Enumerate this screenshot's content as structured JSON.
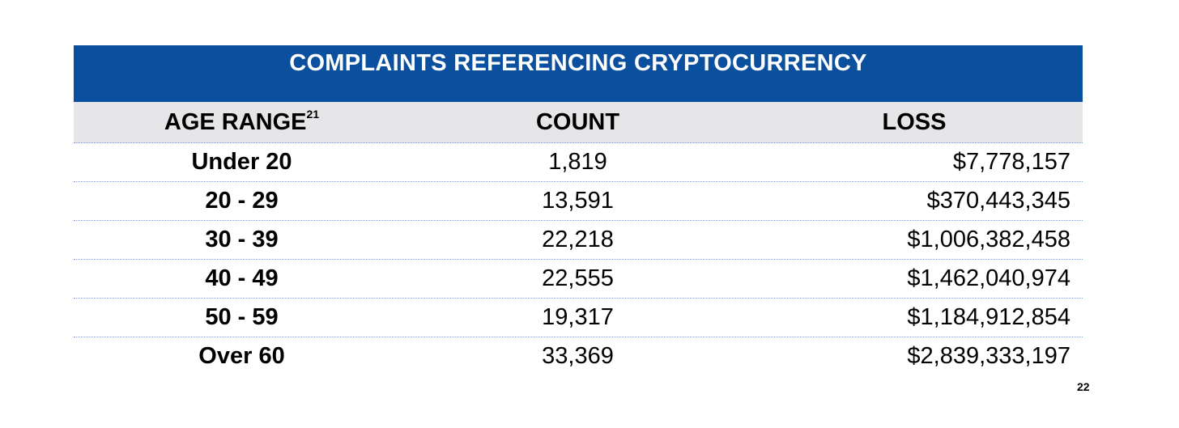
{
  "title": "COMPLAINTS REFERENCING CRYPTOCURRENCY",
  "headers": {
    "age_range": "AGE RANGE",
    "age_range_footnote": "21",
    "count": "COUNT",
    "loss": "LOSS"
  },
  "rows": [
    {
      "age": "Under 20",
      "count": "1,819",
      "loss": "$7,778,157"
    },
    {
      "age": "20 - 29",
      "count": "13,591",
      "loss": "$370,443,345"
    },
    {
      "age": "30 - 39",
      "count": "22,218",
      "loss": "$1,006,382,458"
    },
    {
      "age": "40 - 49",
      "count": "22,555",
      "loss": "$1,462,040,974"
    },
    {
      "age": "50 - 59",
      "count": "19,317",
      "loss": "$1,184,912,854"
    },
    {
      "age": "Over 60",
      "count": "33,369",
      "loss": "$2,839,333,197"
    }
  ],
  "page_number": "22",
  "colors": {
    "title_bar": "#0b4f9f",
    "header_bg": "#e6e6e8"
  }
}
